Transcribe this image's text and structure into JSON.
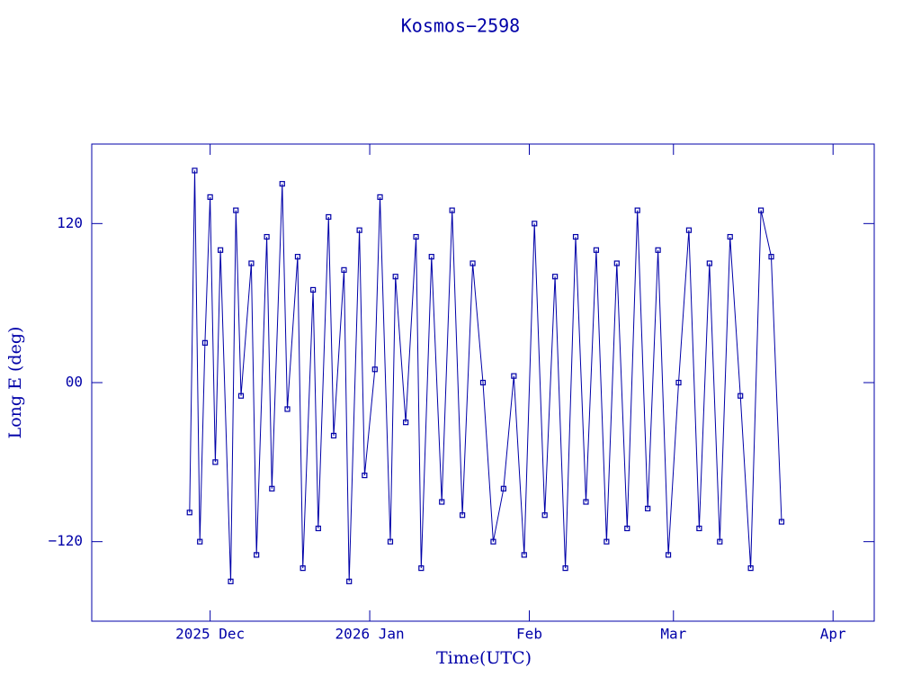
{
  "chart_data": {
    "type": "line",
    "title": "Kosmos−2598",
    "x_label": "Time(UTC)",
    "y_label": "Long E (deg)",
    "color": "#0000a8",
    "xlim": [
      "2025-11-08",
      "2026-04-09"
    ],
    "xticks": [
      {
        "value": "2025-12-01",
        "label": "2025 Dec"
      },
      {
        "value": "2026-01-01",
        "label": "2026 Jan"
      },
      {
        "value": "2026-02-01",
        "label": "Feb"
      },
      {
        "value": "2026-03-01",
        "label": "Mar"
      },
      {
        "value": "2026-04-01",
        "label": "Apr"
      }
    ],
    "ylim": [
      -180,
      180
    ],
    "yticks": [
      {
        "value": -120,
        "label": "−120"
      },
      {
        "value": 0,
        "label": "00"
      },
      120
    ],
    "x": [
      "2025-11-27",
      "2025-11-28",
      "2025-11-29",
      "2025-11-30",
      "2025-12-01",
      "2025-12-02",
      "2025-12-03",
      "2025-12-05",
      "2025-12-06",
      "2025-12-07",
      "2025-12-09",
      "2025-12-10",
      "2025-12-12",
      "2025-12-13",
      "2025-12-15",
      "2025-12-16",
      "2025-12-18",
      "2025-12-19",
      "2025-12-21",
      "2025-12-22",
      "2025-12-24",
      "2025-12-25",
      "2025-12-27",
      "2025-12-28",
      "2025-12-30",
      "2025-12-31",
      "2026-01-02",
      "2026-01-03",
      "2026-01-05",
      "2026-01-06",
      "2026-01-08",
      "2026-01-10",
      "2026-01-11",
      "2026-01-13",
      "2026-01-15",
      "2026-01-17",
      "2026-01-19",
      "2026-01-21",
      "2026-01-23",
      "2026-01-25",
      "2026-01-27",
      "2026-01-29",
      "2026-01-31",
      "2026-02-02",
      "2026-02-04",
      "2026-02-06",
      "2026-02-08",
      "2026-02-10",
      "2026-02-12",
      "2026-02-14",
      "2026-02-16",
      "2026-02-18",
      "2026-02-20",
      "2026-02-22",
      "2026-02-24",
      "2026-02-26",
      "2026-02-28",
      "2026-03-02",
      "2026-03-04",
      "2026-03-06",
      "2026-03-08",
      "2026-03-10",
      "2026-03-12",
      "2026-03-14",
      "2026-03-16",
      "2026-03-18",
      "2026-03-20",
      "2026-03-22"
    ],
    "values": [
      -98,
      160,
      -120,
      30,
      140,
      -60,
      100,
      -150,
      130,
      -10,
      90,
      -130,
      110,
      -80,
      150,
      -20,
      95,
      -140,
      70,
      -110,
      125,
      -40,
      85,
      -150,
      115,
      -70,
      10,
      140,
      -120,
      80,
      -30,
      110,
      -140,
      95,
      -90,
      130,
      -100,
      90,
      0,
      -120,
      -80,
      5,
      -130,
      120,
      -100,
      80,
      -140,
      110,
      -90,
      100,
      -120,
      90,
      -110,
      130,
      -95,
      100,
      -130,
      0,
      115,
      -110,
      90,
      -120,
      110,
      -10,
      -140,
      130,
      95,
      -105
    ]
  }
}
